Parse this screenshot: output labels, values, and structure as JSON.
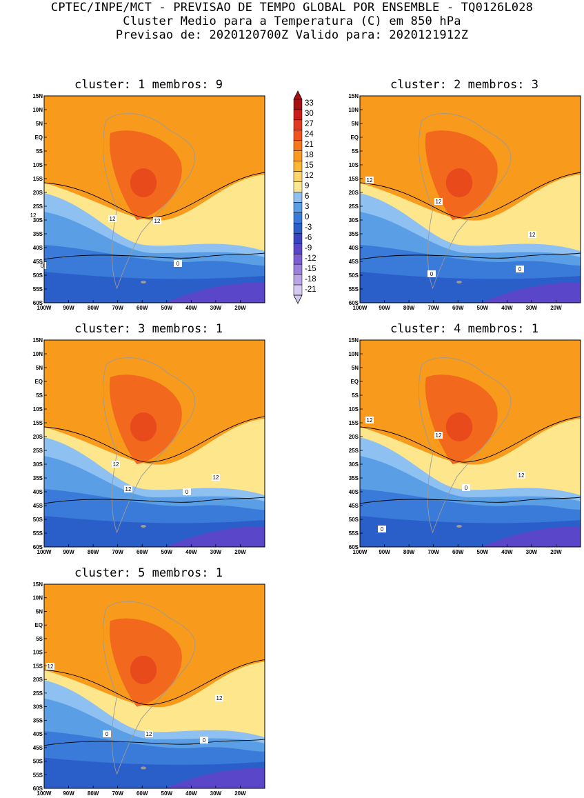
{
  "header": {
    "line1": "CPTEC/INPE/MCT - PREVISAO DE TEMPO GLOBAL POR ENSEMBLE - TQ0126L028",
    "line2": "Cluster Medio para a Temperatura (C) em 850 hPa",
    "line3": "Previsao de: 2020120700Z   Valido para: 2020121912Z"
  },
  "panels": [
    {
      "title": "cluster: 1  membros: 9"
    },
    {
      "title": "cluster: 2  membros: 3"
    },
    {
      "title": "cluster: 3  membros: 1"
    },
    {
      "title": "cluster: 4  membros: 1"
    },
    {
      "title": "cluster: 5  membros: 1"
    }
  ],
  "axes": {
    "lat_labels": [
      "15N",
      "10N",
      "5N",
      "EQ",
      "5S",
      "10S",
      "15S",
      "20S",
      "25S",
      "30S",
      "35S",
      "40S",
      "45S",
      "50S",
      "55S",
      "60S"
    ],
    "lon_labels": [
      "100W",
      "90W",
      "80W",
      "70W",
      "60W",
      "50W",
      "40W",
      "30W",
      "20W"
    ]
  },
  "contour_labels": {
    "twelve": "12",
    "zero": "0"
  },
  "colorbar": {
    "levels": [
      "33",
      "30",
      "27",
      "24",
      "21",
      "18",
      "15",
      "12",
      "9",
      "6",
      "3",
      "0",
      "-3",
      "-6",
      "-9",
      "-12",
      "-15",
      "-18",
      "-21"
    ],
    "colors": [
      "#a50f15",
      "#cb1b1b",
      "#e13a20",
      "#f0551e",
      "#f6781e",
      "#f89a1c",
      "#fbb634",
      "#fdd76a",
      "#fde890",
      "#8ec1f2",
      "#5a9fe6",
      "#3a7ad8",
      "#2a5ec8",
      "#3a44c0",
      "#5a46c8",
      "#7a5ed2",
      "#9a82dc",
      "#b8a6e6",
      "#d6caf0"
    ]
  },
  "palette": {
    "warm_bg": "#f89a1c",
    "land": "#f2681d",
    "hot": "#e94a1c",
    "yellow": "#fde68c",
    "light_blue": "#8ec1f2",
    "mid_blue": "#5a9fe6",
    "blue": "#3a7ad8",
    "deep_blue": "#2a5ec8",
    "purple": "#5a46c8"
  }
}
